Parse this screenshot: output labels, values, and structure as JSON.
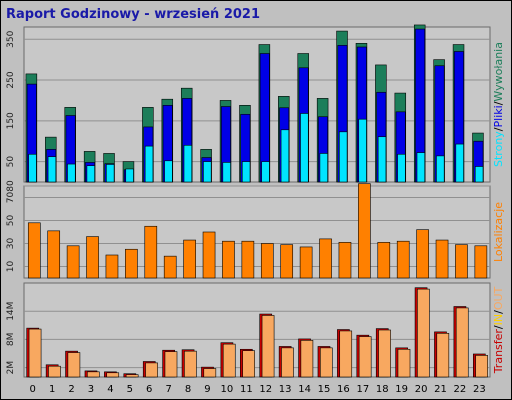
{
  "title": "Raport Godzinowy -  wrzesień 2021",
  "colors": {
    "background": "#c0c0c0",
    "panel": "#c8c8c8",
    "grid": "#909090",
    "hits": "#1c7e5a",
    "files": "#0000e6",
    "pages": "#00e4ff",
    "sites": "#ff8000",
    "kbytes": "#c80000",
    "in": "#f8a860",
    "out": "#ffd000",
    "title": "#1a1aa8"
  },
  "chart_data": [
    {
      "type": "bar",
      "panel": "top",
      "side_label": [
        "Strony",
        "/",
        "Pliki",
        "/",
        "Wywołania"
      ],
      "y_ticks": [
        "50",
        "150",
        "250",
        "350"
      ],
      "ylim": [
        0,
        380
      ],
      "categories": [
        "0",
        "1",
        "2",
        "3",
        "4",
        "5",
        "6",
        "7",
        "8",
        "9",
        "10",
        "11",
        "12",
        "13",
        "14",
        "15",
        "16",
        "17",
        "18",
        "19",
        "20",
        "21",
        "22",
        "23"
      ],
      "series": [
        {
          "name": "Wywołania",
          "values": [
            265,
            110,
            183,
            75,
            70,
            50,
            183,
            203,
            230,
            80,
            200,
            188,
            337,
            210,
            315,
            205,
            370,
            340,
            287,
            218,
            385,
            300,
            337,
            120
          ]
        },
        {
          "name": "Pliki",
          "values": [
            240,
            80,
            163,
            48,
            45,
            30,
            135,
            188,
            205,
            60,
            185,
            166,
            315,
            182,
            280,
            160,
            335,
            331,
            220,
            172,
            375,
            285,
            320,
            100
          ]
        },
        {
          "name": "Strony",
          "values": [
            68,
            62,
            44,
            40,
            43,
            32,
            88,
            52,
            90,
            50,
            48,
            50,
            50,
            128,
            168,
            70,
            123,
            154,
            111,
            68,
            72,
            64,
            93,
            38
          ]
        }
      ]
    },
    {
      "type": "bar",
      "panel": "middle",
      "side_label": [
        "Lokalizacje"
      ],
      "y_ticks": [
        "10",
        "30",
        "50",
        "70",
        "80"
      ],
      "ylim": [
        0,
        80
      ],
      "categories": [
        "0",
        "1",
        "2",
        "3",
        "4",
        "5",
        "6",
        "7",
        "8",
        "9",
        "10",
        "11",
        "12",
        "13",
        "14",
        "15",
        "16",
        "17",
        "18",
        "19",
        "20",
        "21",
        "22",
        "23"
      ],
      "series": [
        {
          "name": "Lokalizacje",
          "values": [
            48,
            41,
            28,
            36,
            20,
            25,
            45,
            19,
            33,
            40,
            32,
            32,
            30,
            29,
            27,
            34,
            31,
            82,
            31,
            32,
            42,
            33,
            29,
            28
          ]
        }
      ]
    },
    {
      "type": "bar",
      "panel": "bottom",
      "side_label": [
        "Transfer",
        "/",
        "IN",
        "/",
        "OUT"
      ],
      "y_ticks": [
        "2M",
        "8M",
        "14M"
      ],
      "ylim": [
        0,
        20
      ],
      "categories": [
        "0",
        "1",
        "2",
        "3",
        "4",
        "5",
        "6",
        "7",
        "8",
        "9",
        "10",
        "11",
        "12",
        "13",
        "14",
        "15",
        "16",
        "17",
        "18",
        "19",
        "20",
        "21",
        "22",
        "23"
      ],
      "series": [
        {
          "name": "Transfer",
          "values": [
            10.4,
            2.6,
            5.5,
            1.3,
            1.1,
            0.7,
            3.3,
            5.7,
            5.8,
            2.1,
            7.3,
            5.9,
            13.4,
            6.5,
            8.1,
            6.5,
            10.1,
            8.9,
            10.3,
            6.2,
            19.0,
            9.6,
            15.0,
            4.9
          ]
        },
        {
          "name": "IN",
          "values": [
            10.2,
            2.3,
            5.2,
            1.1,
            0.9,
            0.5,
            3.0,
            5.4,
            5.5,
            1.8,
            7.0,
            5.6,
            13.1,
            6.2,
            7.8,
            6.2,
            9.8,
            8.6,
            10.0,
            5.9,
            18.7,
            9.3,
            14.7,
            4.6
          ]
        }
      ]
    }
  ]
}
